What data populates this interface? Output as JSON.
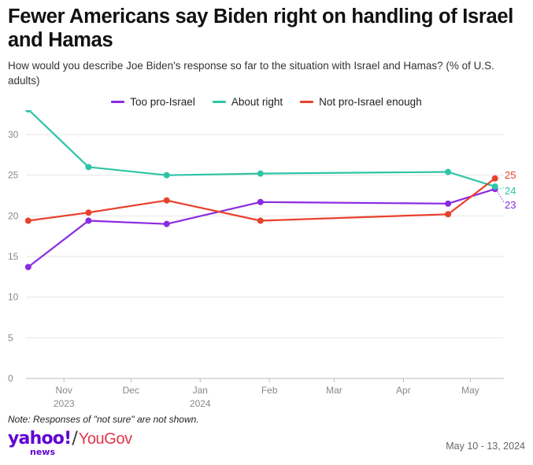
{
  "title": "Fewer Americans say Biden right on handling of Israel and Hamas",
  "subtitle": "How would you describe Joe Biden's response so far to the situation with Israel and Hamas? (% of U.S. adults)",
  "note": "Note: Responses of \"not sure\" are not shown.",
  "logo": {
    "brand": "yahoo!",
    "sub": "news",
    "separator": "/",
    "partner": "YouGov"
  },
  "date_range": "May 10 - 13, 2024",
  "colors": {
    "too_pro_israel": "#8a2be2",
    "about_right": "#2ec4a6",
    "not_pro_israel_enough": "#e8412c"
  },
  "chart_data": {
    "type": "line",
    "title": "Fewer Americans say Biden right on handling of Israel and Hamas",
    "xlabel": "",
    "ylabel": "% of U.S. adults",
    "ylim": [
      0,
      33
    ],
    "y_ticks": [
      0,
      5,
      10,
      15,
      20,
      25,
      30
    ],
    "x_dates": [
      "2023-10-16",
      "2023-11-12",
      "2023-12-17",
      "2024-01-28",
      "2024-04-21",
      "2024-05-12"
    ],
    "x_ticks": [
      {
        "date": "2023-11-01",
        "label": "Nov",
        "label2": "2023"
      },
      {
        "date": "2023-12-01",
        "label": "Dec",
        "label2": ""
      },
      {
        "date": "2024-01-01",
        "label": "Jan",
        "label2": "2024"
      },
      {
        "date": "2024-02-01",
        "label": "Feb",
        "label2": ""
      },
      {
        "date": "2024-03-01",
        "label": "Mar",
        "label2": ""
      },
      {
        "date": "2024-04-01",
        "label": "Apr",
        "label2": ""
      },
      {
        "date": "2024-05-01",
        "label": "May",
        "label2": ""
      }
    ],
    "x_range": [
      "2023-10-15",
      "2024-05-16"
    ],
    "legend_position": "top-center",
    "series": [
      {
        "key": "too_pro_israel",
        "name": "Too pro-Israel",
        "values": [
          13.7,
          19.4,
          19.0,
          21.7,
          21.5,
          23.3
        ],
        "end_label": "23"
      },
      {
        "key": "about_right",
        "name": "About right",
        "values": [
          33.1,
          26.0,
          25.0,
          25.2,
          25.4,
          23.6
        ],
        "end_label": "24"
      },
      {
        "key": "not_pro_israel_enough",
        "name": "Not pro-Israel enough",
        "values": [
          19.4,
          20.4,
          21.9,
          19.4,
          20.2,
          24.6
        ],
        "end_label": "25"
      }
    ]
  }
}
